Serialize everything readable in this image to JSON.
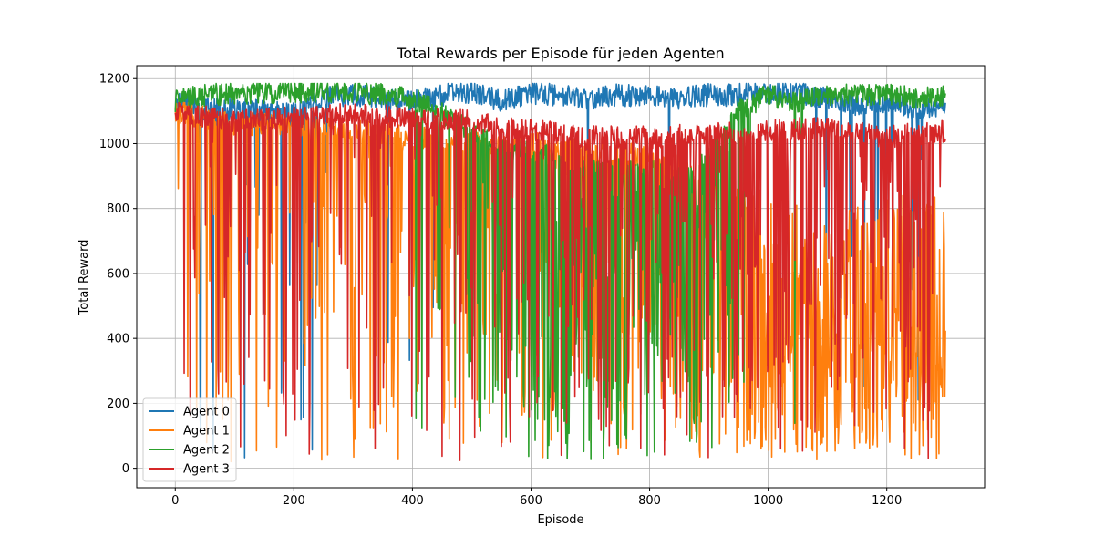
{
  "chart_data": {
    "type": "line",
    "title": "Total Rewards per Episode für jeden Agenten",
    "xlabel": "Episode",
    "ylabel": "Total Reward",
    "xlim": [
      -65,
      1365
    ],
    "ylim": [
      -60,
      1240
    ],
    "xticks": [
      0,
      200,
      400,
      600,
      800,
      1000,
      1200
    ],
    "yticks": [
      0,
      200,
      400,
      600,
      800,
      1000,
      1200
    ],
    "grid": true,
    "legend_position": "lower-left",
    "episodes": 1300,
    "series": [
      {
        "name": "Agent 0",
        "color": "#1f77b4",
        "points": [
          [
            0,
            1120
          ],
          [
            20,
            1140
          ],
          [
            40,
            1100
          ],
          [
            60,
            1110
          ],
          [
            100,
            1105
          ],
          [
            150,
            1100
          ],
          [
            200,
            1090
          ],
          [
            250,
            1140
          ],
          [
            300,
            1150
          ],
          [
            350,
            1140
          ],
          [
            400,
            1130
          ],
          [
            450,
            1150
          ],
          [
            500,
            1160
          ],
          [
            550,
            1130
          ],
          [
            600,
            1155
          ],
          [
            650,
            1150
          ],
          [
            700,
            1140
          ],
          [
            750,
            1150
          ],
          [
            800,
            1145
          ],
          [
            850,
            1140
          ],
          [
            900,
            1150
          ],
          [
            950,
            1150
          ],
          [
            1000,
            1160
          ],
          [
            1050,
            1155
          ],
          [
            1100,
            1140
          ],
          [
            1150,
            1120
          ],
          [
            1200,
            1130
          ],
          [
            1250,
            1110
          ],
          [
            1300,
            1120
          ]
        ]
      },
      {
        "name": "Agent 1",
        "color": "#ff7f0e",
        "points": [
          [
            0,
            1100
          ],
          [
            100,
            1060
          ],
          [
            200,
            1060
          ],
          [
            300,
            1040
          ],
          [
            400,
            1020
          ],
          [
            500,
            1000
          ],
          [
            600,
            1000
          ],
          [
            700,
            980
          ],
          [
            800,
            960
          ],
          [
            900,
            900
          ],
          [
            1000,
            820
          ],
          [
            1100,
            760
          ],
          [
            1200,
            800
          ],
          [
            1300,
            820
          ]
        ]
      },
      {
        "name": "Agent 2",
        "color": "#2ca02c",
        "points": [
          [
            0,
            1130
          ],
          [
            50,
            1150
          ],
          [
            100,
            1155
          ],
          [
            200,
            1160
          ],
          [
            300,
            1160
          ],
          [
            400,
            1140
          ],
          [
            450,
            1090
          ],
          [
            500,
            1040
          ],
          [
            550,
            980
          ],
          [
            600,
            980
          ],
          [
            650,
            950
          ],
          [
            700,
            940
          ],
          [
            750,
            920
          ],
          [
            800,
            920
          ],
          [
            850,
            900
          ],
          [
            900,
            960
          ],
          [
            950,
            1100
          ],
          [
            1000,
            1150
          ],
          [
            1050,
            1130
          ],
          [
            1100,
            1150
          ],
          [
            1150,
            1150
          ],
          [
            1200,
            1150
          ],
          [
            1250,
            1140
          ],
          [
            1300,
            1150
          ]
        ]
      },
      {
        "name": "Agent 3",
        "color": "#d62728",
        "points": [
          [
            0,
            1100
          ],
          [
            100,
            1070
          ],
          [
            200,
            1080
          ],
          [
            300,
            1090
          ],
          [
            400,
            1080
          ],
          [
            500,
            1070
          ],
          [
            600,
            1040
          ],
          [
            700,
            1020
          ],
          [
            800,
            1020
          ],
          [
            900,
            1030
          ],
          [
            1000,
            1040
          ],
          [
            1100,
            1050
          ],
          [
            1200,
            1020
          ],
          [
            1300,
            1040
          ]
        ]
      }
    ]
  }
}
